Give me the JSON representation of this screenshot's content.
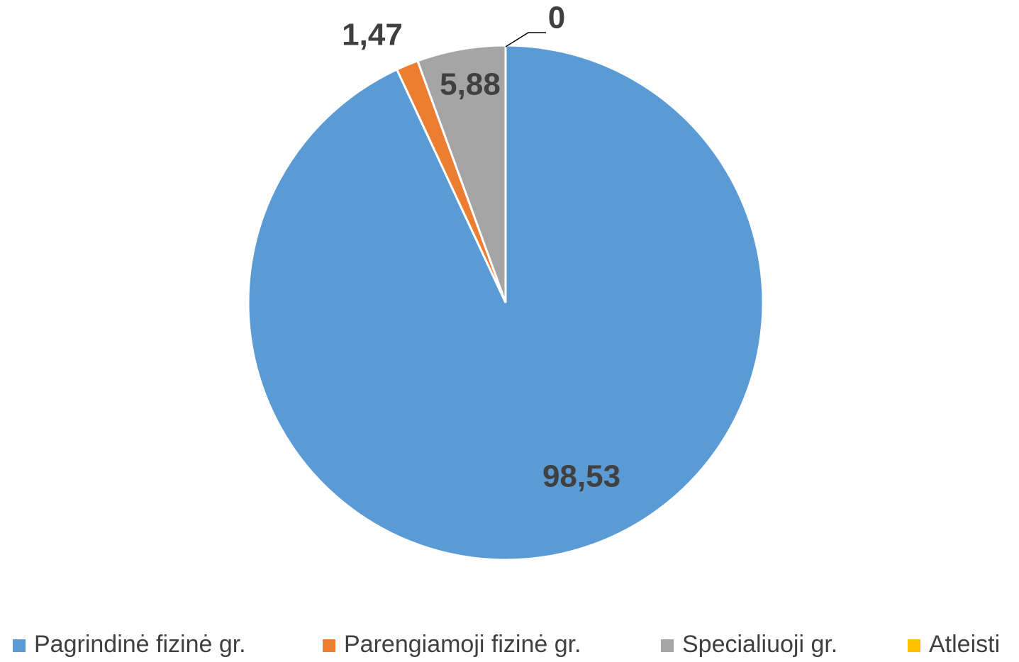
{
  "chart_data": {
    "type": "pie",
    "categories": [
      "Pagrindinė fizinė gr.",
      "Parengiamoji fizinė gr.",
      "Specialiuoji gr.",
      "Atleisti"
    ],
    "values": [
      98.53,
      1.47,
      5.88,
      0
    ],
    "value_labels": [
      "98,53",
      "1,47",
      "5,88",
      "0"
    ],
    "colors": [
      "#5b9bd5",
      "#ed7d31",
      "#a5a5a5",
      "#ffc000"
    ]
  }
}
